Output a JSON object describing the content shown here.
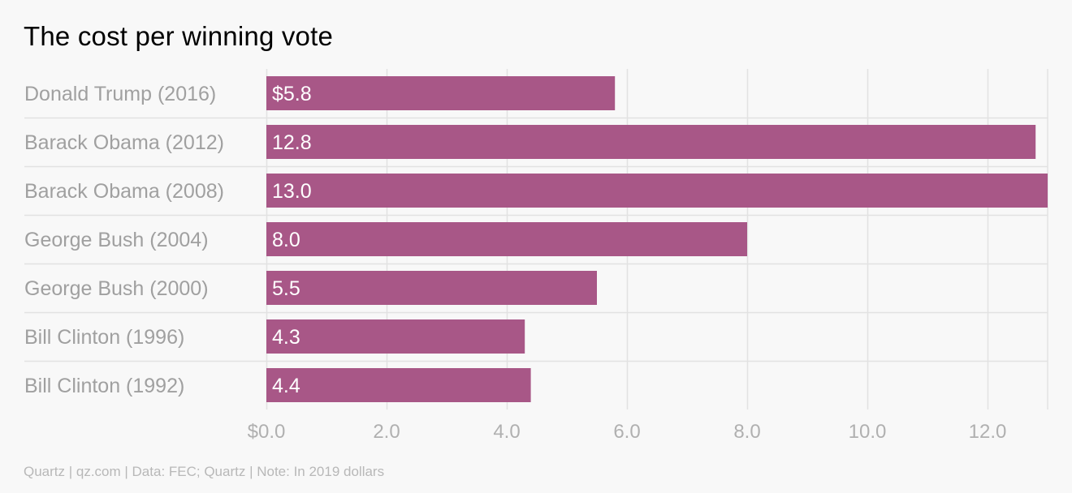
{
  "chart_data": {
    "type": "bar",
    "orientation": "horizontal",
    "title": "The cost per winning vote",
    "source": "Quartz | qz.com | Data: FEC; Quartz | Note: In 2019 dollars",
    "categories": [
      "Donald Trump (2016)",
      "Barack Obama (2012)",
      "Barack Obama (2008)",
      "George Bush (2004)",
      "George Bush (2000)",
      "Bill Clinton (1996)",
      "Bill Clinton (1992)"
    ],
    "values": [
      5.8,
      12.8,
      13.0,
      8.0,
      5.5,
      4.3,
      4.4
    ],
    "value_labels": [
      "$5.8",
      "12.8",
      "13.0",
      "8.0",
      "5.5",
      "4.3",
      "4.4"
    ],
    "xlim": [
      0,
      13
    ],
    "xticks": [
      0,
      2,
      4,
      6,
      8,
      10,
      12
    ],
    "xtick_labels": [
      "$0.0",
      "2.0",
      "4.0",
      "6.0",
      "8.0",
      "10.0",
      "12.0"
    ],
    "xlabel": "",
    "ylabel": "",
    "grid": true,
    "colors": {
      "bar": "#a85787",
      "bar_label": "#ffffff",
      "category_label": "#a0a0a0",
      "tick_label": "#b0b0b0",
      "grid": "#e2e2e2",
      "background": "#f8f8f8"
    }
  }
}
